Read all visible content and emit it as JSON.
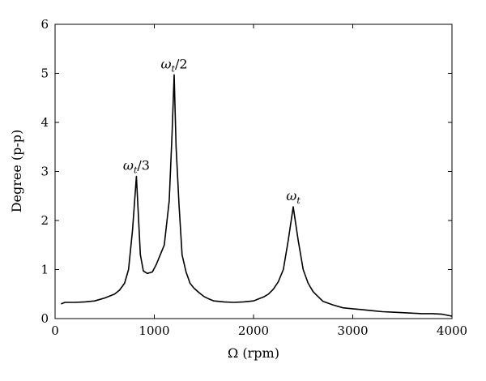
{
  "chart_data": {
    "type": "line",
    "xlabel": "Ω (rpm)",
    "ylabel": "Degree (p-p)",
    "xlim": [
      0,
      4000
    ],
    "ylim": [
      0,
      6
    ],
    "x_ticks": [
      0,
      1000,
      2000,
      3000,
      4000
    ],
    "y_ticks": [
      0,
      1,
      2,
      3,
      4,
      5,
      6
    ],
    "x_tick_labels": [
      "0",
      "1000",
      "2000",
      "3000",
      "4000"
    ],
    "y_tick_labels": [
      "0",
      "1",
      "2",
      "3",
      "4",
      "5",
      "6"
    ],
    "grid": false,
    "series": [
      {
        "color": "#000000",
        "x": [
          60,
          100,
          200,
          300,
          400,
          500,
          600,
          650,
          700,
          740,
          780,
          820,
          860,
          890,
          930,
          980,
          1020,
          1060,
          1100,
          1150,
          1180,
          1200,
          1220,
          1250,
          1280,
          1320,
          1360,
          1400,
          1450,
          1500,
          1550,
          1600,
          1700,
          1800,
          1900,
          2000,
          2050,
          2100,
          2150,
          2200,
          2250,
          2300,
          2350,
          2400,
          2450,
          2500,
          2550,
          2600,
          2650,
          2700,
          2800,
          2900,
          3000,
          3100,
          3200,
          3300,
          3400,
          3500,
          3600,
          3700,
          3800,
          3900,
          4000
        ],
        "y": [
          0.3,
          0.33,
          0.33,
          0.34,
          0.36,
          0.42,
          0.5,
          0.58,
          0.72,
          1.0,
          1.8,
          2.9,
          1.3,
          0.97,
          0.92,
          0.95,
          1.1,
          1.3,
          1.5,
          2.4,
          3.8,
          4.97,
          3.5,
          2.3,
          1.3,
          0.95,
          0.72,
          0.62,
          0.53,
          0.45,
          0.4,
          0.36,
          0.34,
          0.33,
          0.34,
          0.36,
          0.4,
          0.44,
          0.5,
          0.6,
          0.75,
          1.0,
          1.6,
          2.28,
          1.6,
          1.0,
          0.72,
          0.55,
          0.45,
          0.35,
          0.28,
          0.22,
          0.2,
          0.18,
          0.16,
          0.14,
          0.13,
          0.12,
          0.11,
          0.1,
          0.1,
          0.09,
          0.05
        ]
      }
    ],
    "annotations": [
      {
        "text": "ω",
        "sub": "t",
        "suffix": "/3",
        "x": 820,
        "y": 2.9
      },
      {
        "text": "ω",
        "sub": "t",
        "suffix": "/2",
        "x": 1200,
        "y": 4.97
      },
      {
        "text": "ω",
        "sub": "t",
        "suffix": "",
        "x": 2400,
        "y": 2.28
      }
    ]
  }
}
